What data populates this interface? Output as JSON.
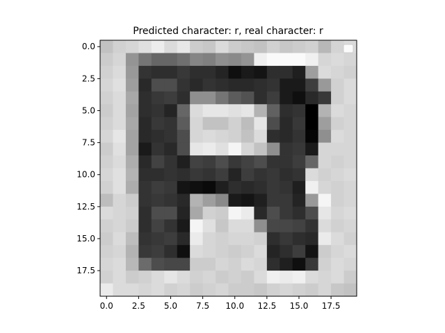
{
  "chart_data": {
    "type": "heatmap",
    "title": "Predicted character: r, real character: r",
    "colormap": "gray",
    "xlim": [
      -0.5,
      19.5
    ],
    "ylim": [
      19.5,
      -0.5
    ],
    "x_ticks": [
      0.0,
      2.5,
      5.0,
      7.5,
      10.0,
      12.5,
      15.0,
      17.5
    ],
    "x_tick_labels": [
      "0.0",
      "2.5",
      "5.0",
      "7.5",
      "10.0",
      "12.5",
      "15.0",
      "17.5"
    ],
    "y_ticks": [
      0.0,
      2.5,
      5.0,
      7.5,
      10.0,
      12.5,
      15.0,
      17.5
    ],
    "y_tick_labels": [
      "0.0",
      "2.5",
      "5.0",
      "7.5",
      "10.0",
      "12.5",
      "15.0",
      "17.5"
    ],
    "legend": {
      "location": "upper right",
      "entries": []
    },
    "matrix": [
      [
        0.76,
        0.82,
        0.84,
        0.88,
        0.93,
        0.86,
        0.91,
        0.8,
        0.78,
        0.86,
        0.8,
        0.78,
        0.76,
        0.82,
        0.78,
        0.8,
        0.82,
        0.72,
        0.83,
        0.86
      ],
      [
        0.8,
        0.84,
        0.58,
        0.46,
        0.4,
        0.4,
        0.44,
        0.52,
        0.5,
        0.56,
        0.54,
        0.58,
        0.94,
        0.98,
        0.98,
        0.98,
        0.94,
        0.84,
        0.86,
        0.84
      ],
      [
        0.82,
        0.86,
        0.6,
        0.2,
        0.18,
        0.18,
        0.22,
        0.18,
        0.18,
        0.14,
        0.06,
        0.1,
        0.08,
        0.18,
        0.18,
        0.12,
        0.62,
        0.86,
        0.84,
        0.82
      ],
      [
        0.84,
        0.88,
        0.62,
        0.16,
        0.3,
        0.3,
        0.2,
        0.16,
        0.2,
        0.18,
        0.16,
        0.16,
        0.18,
        0.2,
        0.1,
        0.1,
        0.24,
        0.6,
        0.82,
        0.86
      ],
      [
        0.82,
        0.86,
        0.66,
        0.18,
        0.22,
        0.24,
        0.18,
        0.56,
        0.56,
        0.46,
        0.36,
        0.32,
        0.18,
        0.24,
        0.1,
        0.06,
        0.16,
        0.22,
        0.82,
        0.86
      ],
      [
        0.8,
        0.86,
        0.64,
        0.18,
        0.2,
        0.14,
        0.4,
        0.86,
        0.9,
        0.9,
        0.88,
        0.9,
        0.7,
        0.38,
        0.18,
        0.2,
        0.0,
        0.7,
        0.86,
        0.84
      ],
      [
        0.82,
        0.86,
        0.66,
        0.16,
        0.22,
        0.2,
        0.36,
        0.84,
        0.76,
        0.76,
        0.82,
        0.74,
        0.9,
        0.3,
        0.16,
        0.22,
        0.0,
        0.62,
        0.82,
        0.84
      ],
      [
        0.84,
        0.9,
        0.64,
        0.16,
        0.18,
        0.2,
        0.3,
        0.84,
        0.86,
        0.84,
        0.82,
        0.76,
        0.86,
        0.18,
        0.16,
        0.2,
        0.02,
        0.56,
        0.86,
        0.84
      ],
      [
        0.8,
        0.88,
        0.64,
        0.1,
        0.2,
        0.16,
        0.3,
        0.9,
        0.92,
        0.88,
        0.96,
        0.84,
        0.76,
        0.56,
        0.2,
        0.22,
        0.1,
        0.84,
        0.84,
        0.84
      ],
      [
        0.82,
        0.86,
        0.68,
        0.16,
        0.26,
        0.2,
        0.12,
        0.26,
        0.24,
        0.3,
        0.22,
        0.26,
        0.3,
        0.2,
        0.2,
        0.24,
        0.4,
        0.84,
        0.82,
        0.84
      ],
      [
        0.84,
        0.88,
        0.7,
        0.18,
        0.18,
        0.2,
        0.18,
        0.22,
        0.2,
        0.24,
        0.14,
        0.24,
        0.2,
        0.22,
        0.18,
        0.2,
        0.86,
        0.82,
        0.84,
        0.86
      ],
      [
        0.82,
        0.88,
        0.68,
        0.2,
        0.24,
        0.22,
        0.08,
        0.06,
        0.04,
        0.12,
        0.18,
        0.16,
        0.18,
        0.22,
        0.2,
        0.12,
        0.94,
        0.84,
        0.82,
        0.84
      ],
      [
        0.74,
        0.84,
        0.8,
        0.2,
        0.22,
        0.2,
        0.16,
        0.7,
        0.62,
        0.54,
        0.1,
        0.08,
        0.12,
        0.22,
        0.22,
        0.14,
        0.6,
        0.96,
        0.82,
        0.84
      ],
      [
        0.86,
        0.84,
        0.82,
        0.18,
        0.3,
        0.3,
        0.14,
        0.66,
        0.82,
        0.8,
        0.96,
        0.92,
        0.16,
        0.3,
        0.22,
        0.18,
        0.3,
        0.9,
        0.84,
        0.86
      ],
      [
        0.82,
        0.84,
        0.8,
        0.18,
        0.26,
        0.2,
        0.1,
        0.96,
        0.88,
        0.78,
        0.86,
        0.86,
        0.56,
        0.28,
        0.28,
        0.26,
        0.2,
        0.86,
        0.82,
        0.84
      ],
      [
        0.8,
        0.86,
        0.74,
        0.2,
        0.22,
        0.24,
        0.16,
        0.92,
        0.84,
        0.82,
        0.84,
        0.84,
        0.82,
        0.18,
        0.22,
        0.18,
        0.16,
        0.92,
        0.86,
        0.82
      ],
      [
        0.82,
        0.84,
        0.7,
        0.22,
        0.24,
        0.18,
        0.06,
        0.86,
        0.84,
        0.82,
        0.8,
        0.82,
        0.86,
        0.14,
        0.18,
        0.24,
        0.08,
        0.8,
        0.84,
        0.86
      ],
      [
        0.84,
        0.86,
        0.72,
        0.42,
        0.3,
        0.28,
        0.28,
        0.8,
        0.8,
        0.84,
        0.82,
        0.86,
        0.84,
        0.18,
        0.12,
        0.06,
        0.22,
        0.82,
        0.86,
        0.84
      ],
      [
        0.82,
        0.86,
        0.8,
        0.82,
        0.86,
        0.9,
        0.86,
        0.82,
        0.84,
        0.8,
        0.82,
        0.8,
        0.86,
        0.94,
        0.92,
        0.94,
        0.86,
        0.84,
        0.86,
        0.8
      ],
      [
        0.92,
        0.86,
        0.86,
        0.84,
        0.86,
        0.82,
        0.84,
        0.8,
        0.82,
        0.84,
        0.8,
        0.8,
        0.78,
        0.82,
        0.84,
        0.82,
        0.8,
        0.84,
        0.78,
        0.76
      ]
    ]
  }
}
